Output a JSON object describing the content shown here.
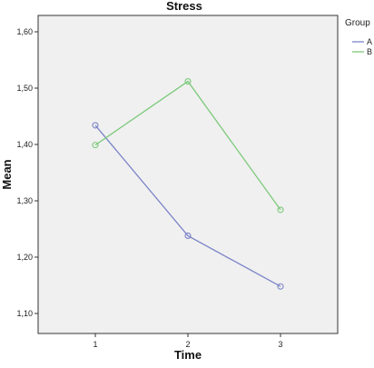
{
  "chart_data": {
    "type": "line",
    "title": "Stress",
    "xlabel": "Time",
    "ylabel": "Mean",
    "categories": [
      "1",
      "2",
      "3"
    ],
    "x_ticks": [
      "1",
      "2",
      "3"
    ],
    "y_ticks": [
      "1,10",
      "1,20",
      "1,30",
      "1,40",
      "1,50",
      "1,60"
    ],
    "ylim": [
      1.1,
      1.6
    ],
    "grid": false,
    "legend": {
      "title": "Group",
      "position": "right"
    },
    "series": [
      {
        "name": "A",
        "color": "#7b84c8",
        "values": [
          1.434,
          1.238,
          1.148
        ]
      },
      {
        "name": "B",
        "color": "#7cc97a",
        "values": [
          1.399,
          1.512,
          1.284
        ]
      }
    ],
    "plot_background": "#f0f0f0",
    "marker": "circle"
  }
}
